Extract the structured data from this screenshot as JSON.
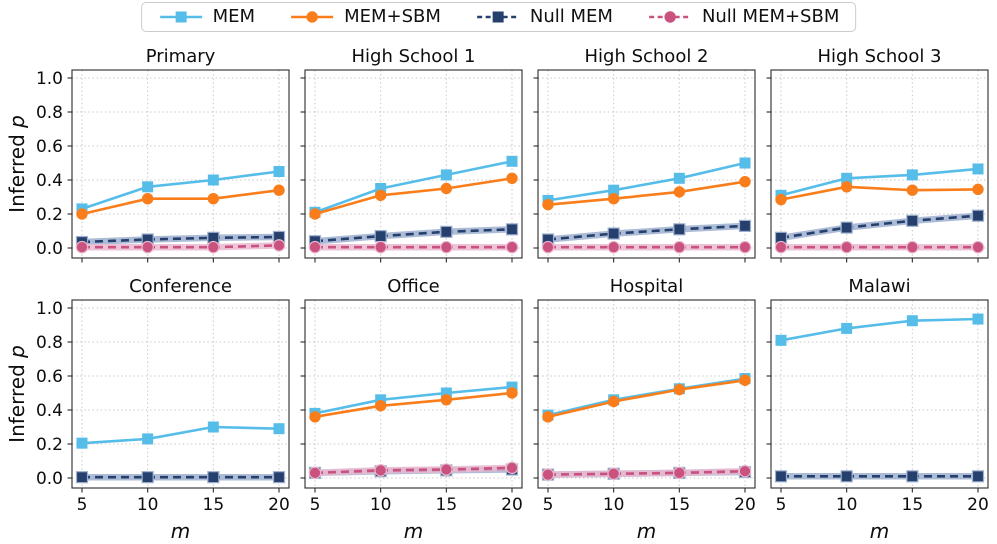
{
  "legend": {
    "items": [
      {
        "label": "MEM",
        "color": "#56BDE9",
        "marker": "square",
        "dash": false
      },
      {
        "label": "MEM+SBM",
        "color": "#F97E1B",
        "marker": "circle",
        "dash": false
      },
      {
        "label": "Null MEM",
        "color": "#26406E",
        "marker": "square",
        "dash": true
      },
      {
        "label": "Null MEM+SBM",
        "color": "#C9527F",
        "marker": "circle",
        "dash": true
      }
    ]
  },
  "axes": {
    "ylabel_prefix": "Inferred",
    "ylabel_var": "p",
    "xlabel": "m",
    "yticks": [
      0.0,
      0.2,
      0.4,
      0.6,
      0.8,
      1.0
    ],
    "xticks": [
      5,
      10,
      15,
      20
    ],
    "ylim": [
      0.0,
      1.0
    ]
  },
  "styles": {
    "MEM": {
      "color": "#56BDE9",
      "marker": "square",
      "dash": null,
      "band": null
    },
    "MEM+SBM": {
      "color": "#F97E1B",
      "marker": "circle",
      "dash": null,
      "band": null
    },
    "Null MEM": {
      "color": "#26406E",
      "marker": "square",
      "dash": "8 5",
      "band": "#9FB0CF"
    },
    "Null MEM+SBM": {
      "color": "#C9527F",
      "marker": "circle",
      "dash": "8 5",
      "band": "#EAB9D0"
    }
  },
  "chart_data": [
    {
      "type": "line",
      "title": "Primary",
      "x": [
        5,
        10,
        15,
        20
      ],
      "ylim": [
        0,
        1
      ],
      "series": [
        {
          "name": "MEM",
          "values": [
            0.23,
            0.36,
            0.4,
            0.45
          ]
        },
        {
          "name": "MEM+SBM",
          "values": [
            0.2,
            0.29,
            0.29,
            0.34
          ]
        },
        {
          "name": "Null MEM",
          "values": [
            0.035,
            0.05,
            0.06,
            0.065
          ]
        },
        {
          "name": "Null MEM+SBM",
          "values": [
            0.005,
            0.005,
            0.005,
            0.015
          ]
        }
      ]
    },
    {
      "type": "line",
      "title": "High School 1",
      "x": [
        5,
        10,
        15,
        20
      ],
      "ylim": [
        0,
        1
      ],
      "series": [
        {
          "name": "MEM",
          "values": [
            0.21,
            0.35,
            0.43,
            0.51
          ]
        },
        {
          "name": "MEM+SBM",
          "values": [
            0.2,
            0.31,
            0.35,
            0.41
          ]
        },
        {
          "name": "Null MEM",
          "values": [
            0.04,
            0.07,
            0.095,
            0.11
          ]
        },
        {
          "name": "Null MEM+SBM",
          "values": [
            0.005,
            0.005,
            0.005,
            0.005
          ]
        }
      ]
    },
    {
      "type": "line",
      "title": "High School 2",
      "x": [
        5,
        10,
        15,
        20
      ],
      "ylim": [
        0,
        1
      ],
      "series": [
        {
          "name": "MEM",
          "values": [
            0.28,
            0.34,
            0.41,
            0.5
          ]
        },
        {
          "name": "MEM+SBM",
          "values": [
            0.255,
            0.29,
            0.33,
            0.39
          ]
        },
        {
          "name": "Null MEM",
          "values": [
            0.05,
            0.085,
            0.11,
            0.13
          ]
        },
        {
          "name": "Null MEM+SBM",
          "values": [
            0.005,
            0.005,
            0.005,
            0.005
          ]
        }
      ]
    },
    {
      "type": "line",
      "title": "High School 3",
      "x": [
        5,
        10,
        15,
        20
      ],
      "ylim": [
        0,
        1
      ],
      "series": [
        {
          "name": "MEM",
          "values": [
            0.31,
            0.41,
            0.43,
            0.465
          ]
        },
        {
          "name": "MEM+SBM",
          "values": [
            0.285,
            0.36,
            0.34,
            0.345
          ]
        },
        {
          "name": "Null MEM",
          "values": [
            0.06,
            0.12,
            0.16,
            0.19
          ]
        },
        {
          "name": "Null MEM+SBM",
          "values": [
            0.005,
            0.005,
            0.005,
            0.005
          ]
        }
      ]
    },
    {
      "type": "line",
      "title": "Conference",
      "x": [
        5,
        10,
        15,
        20
      ],
      "ylim": [
        0,
        1
      ],
      "series": [
        {
          "name": "MEM",
          "values": [
            0.205,
            0.23,
            0.3,
            0.29
          ]
        },
        {
          "name": "Null MEM",
          "values": [
            0.005,
            0.005,
            0.005,
            0.005
          ]
        }
      ]
    },
    {
      "type": "line",
      "title": "Office",
      "x": [
        5,
        10,
        15,
        20
      ],
      "ylim": [
        0,
        1
      ],
      "series": [
        {
          "name": "MEM",
          "values": [
            0.38,
            0.46,
            0.5,
            0.535
          ]
        },
        {
          "name": "MEM+SBM",
          "values": [
            0.36,
            0.425,
            0.46,
            0.5
          ]
        },
        {
          "name": "Null MEM",
          "values": [
            0.03,
            0.04,
            0.045,
            0.05
          ]
        },
        {
          "name": "Null MEM+SBM",
          "values": [
            0.03,
            0.045,
            0.05,
            0.06
          ]
        }
      ]
    },
    {
      "type": "line",
      "title": "Hospital",
      "x": [
        5,
        10,
        15,
        20
      ],
      "ylim": [
        0,
        1
      ],
      "series": [
        {
          "name": "MEM",
          "values": [
            0.37,
            0.46,
            0.525,
            0.585
          ]
        },
        {
          "name": "MEM+SBM",
          "values": [
            0.36,
            0.45,
            0.52,
            0.575
          ]
        },
        {
          "name": "Null MEM",
          "values": [
            0.02,
            0.025,
            0.03,
            0.035
          ]
        },
        {
          "name": "Null MEM+SBM",
          "values": [
            0.02,
            0.025,
            0.03,
            0.04
          ]
        }
      ]
    },
    {
      "type": "line",
      "title": "Malawi",
      "x": [
        5,
        10,
        15,
        20
      ],
      "ylim": [
        0,
        1
      ],
      "series": [
        {
          "name": "MEM",
          "values": [
            0.81,
            0.88,
            0.925,
            0.935
          ]
        },
        {
          "name": "Null MEM",
          "values": [
            0.01,
            0.01,
            0.01,
            0.01
          ]
        }
      ]
    }
  ]
}
